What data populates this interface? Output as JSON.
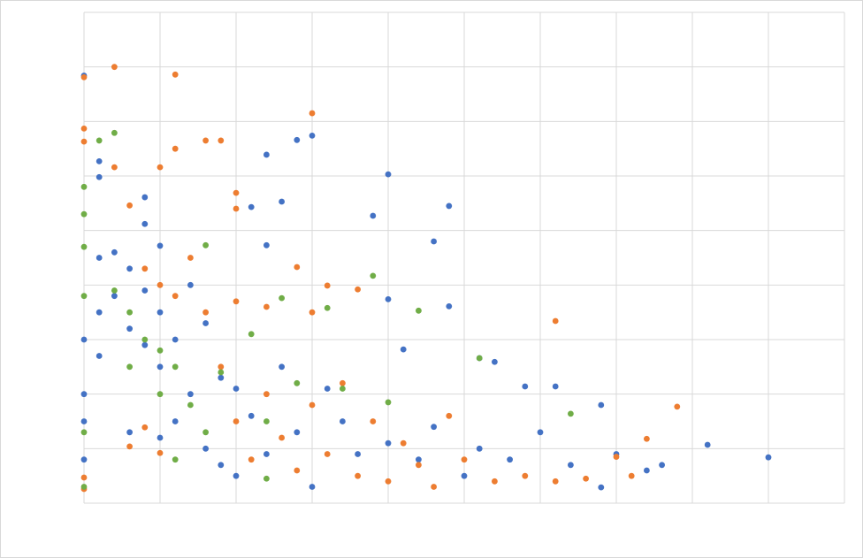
{
  "chart_data": {
    "type": "scatter",
    "xlim": [
      0,
      10
    ],
    "ylim": [
      0,
      9
    ],
    "xticks": [
      0,
      1,
      2,
      3,
      4,
      5,
      6,
      7,
      8,
      9,
      10
    ],
    "yticks": [
      0,
      1,
      2,
      3,
      4,
      5,
      6,
      7,
      8,
      9
    ],
    "grid": true,
    "series": [
      {
        "color": "#4472c4",
        "x": [
          0,
          0.2,
          0.2,
          0.8,
          0.8,
          1,
          2.4,
          2.6,
          2.8,
          3,
          4,
          3.8,
          4.6,
          4.8,
          4.8,
          2.2,
          2.4,
          4,
          4.2,
          5.2,
          5.4,
          5.8,
          6.2,
          6.8,
          8.2,
          9,
          7.6,
          7.4,
          6.8,
          0,
          0,
          0,
          0,
          0.2,
          0.2,
          0.2,
          0.4,
          0.4,
          0.6,
          0.6,
          0.6,
          0.8,
          0.8,
          1,
          1,
          1,
          1.2,
          1.2,
          1.4,
          1.4,
          1.6,
          1.6,
          1.8,
          1.8,
          2,
          2,
          2.2,
          2.4,
          2.6,
          2.8,
          3,
          3.2,
          3.4,
          3.6,
          4,
          4.4,
          4.6,
          5,
          5.2,
          5.6,
          6,
          6.4,
          7
        ],
        "values": [
          7.84,
          6.27,
          5.98,
          5.61,
          5.12,
          4.72,
          6.39,
          5.53,
          6.66,
          6.74,
          6.03,
          5.27,
          4.8,
          5.45,
          3.61,
          5.43,
          4.73,
          3.74,
          2.82,
          2.66,
          2.59,
          2.14,
          2.14,
          1.8,
          1.07,
          0.84,
          0.7,
          0.6,
          0.29,
          3,
          2,
          1.5,
          0.8,
          4.5,
          3.5,
          2.7,
          4.6,
          3.8,
          4.3,
          3.2,
          1.3,
          3.9,
          2.9,
          3.5,
          2.5,
          1.2,
          3,
          1.5,
          4,
          2,
          3.3,
          1,
          2.3,
          0.7,
          2.1,
          0.5,
          1.6,
          0.9,
          2.5,
          1.3,
          0.3,
          2.1,
          1.5,
          0.9,
          1.1,
          0.8,
          1.4,
          0.5,
          1,
          0.8,
          1.3,
          0.7,
          0.9
        ]
      },
      {
        "color": "#ed7d31",
        "x": [
          0,
          0.4,
          1.2,
          3,
          1.6,
          1.8,
          1.2,
          1,
          0.4,
          0.6,
          2,
          2,
          2.8,
          3.2,
          3.6,
          6.2,
          7.8,
          7.4,
          7.2,
          0,
          0,
          0,
          0,
          0.6,
          0.8,
          1,
          1.6,
          1.8,
          2,
          2.2,
          2.4,
          2.6,
          2.8,
          3,
          3.2,
          3.4,
          3.6,
          3.8,
          4,
          4.2,
          4.4,
          4.6,
          4.8,
          5,
          5.4,
          5.8,
          6.2,
          6.6,
          7,
          1.4,
          1.2,
          1,
          0.8,
          2,
          3,
          2.4
        ],
        "values": [
          7.81,
          8.0,
          7.86,
          7.15,
          6.65,
          6.65,
          6.5,
          6.16,
          6.16,
          5.46,
          5.69,
          5.4,
          4.33,
          3.99,
          3.92,
          3.34,
          1.77,
          1.18,
          0.5,
          6.87,
          6.63,
          0.47,
          0.26,
          1.04,
          1.39,
          0.92,
          3.5,
          2.5,
          1.5,
          0.8,
          2,
          1.2,
          0.6,
          1.8,
          0.9,
          2.2,
          0.5,
          1.5,
          0.4,
          1.1,
          0.7,
          0.3,
          1.6,
          0.8,
          0.4,
          0.5,
          0.4,
          0.45,
          0.85,
          4.5,
          3.8,
          4,
          4.3,
          3.7,
          3.5,
          3.6
        ]
      },
      {
        "color": "#70ad47",
        "x": [
          0.4,
          0.2,
          0,
          0,
          0,
          0,
          0,
          0,
          1.6,
          2.6,
          3.8,
          4.4,
          3.2,
          5.2,
          6.4,
          4,
          0.4,
          0.6,
          0.6,
          0.8,
          1,
          1,
          1.2,
          1.4,
          1.6,
          1.8,
          2.2,
          2.4,
          2.8,
          3.4,
          1.2,
          2.4
        ],
        "values": [
          6.79,
          6.65,
          5.8,
          5.3,
          4.7,
          3.8,
          1.3,
          0.3,
          4.73,
          3.76,
          4.17,
          3.53,
          3.58,
          2.66,
          1.64,
          1.85,
          3.9,
          3.5,
          2.5,
          3,
          2.8,
          2,
          2.5,
          1.8,
          1.3,
          2.4,
          3.1,
          1.5,
          2.2,
          2.1,
          0.8,
          0.45
        ]
      }
    ]
  }
}
